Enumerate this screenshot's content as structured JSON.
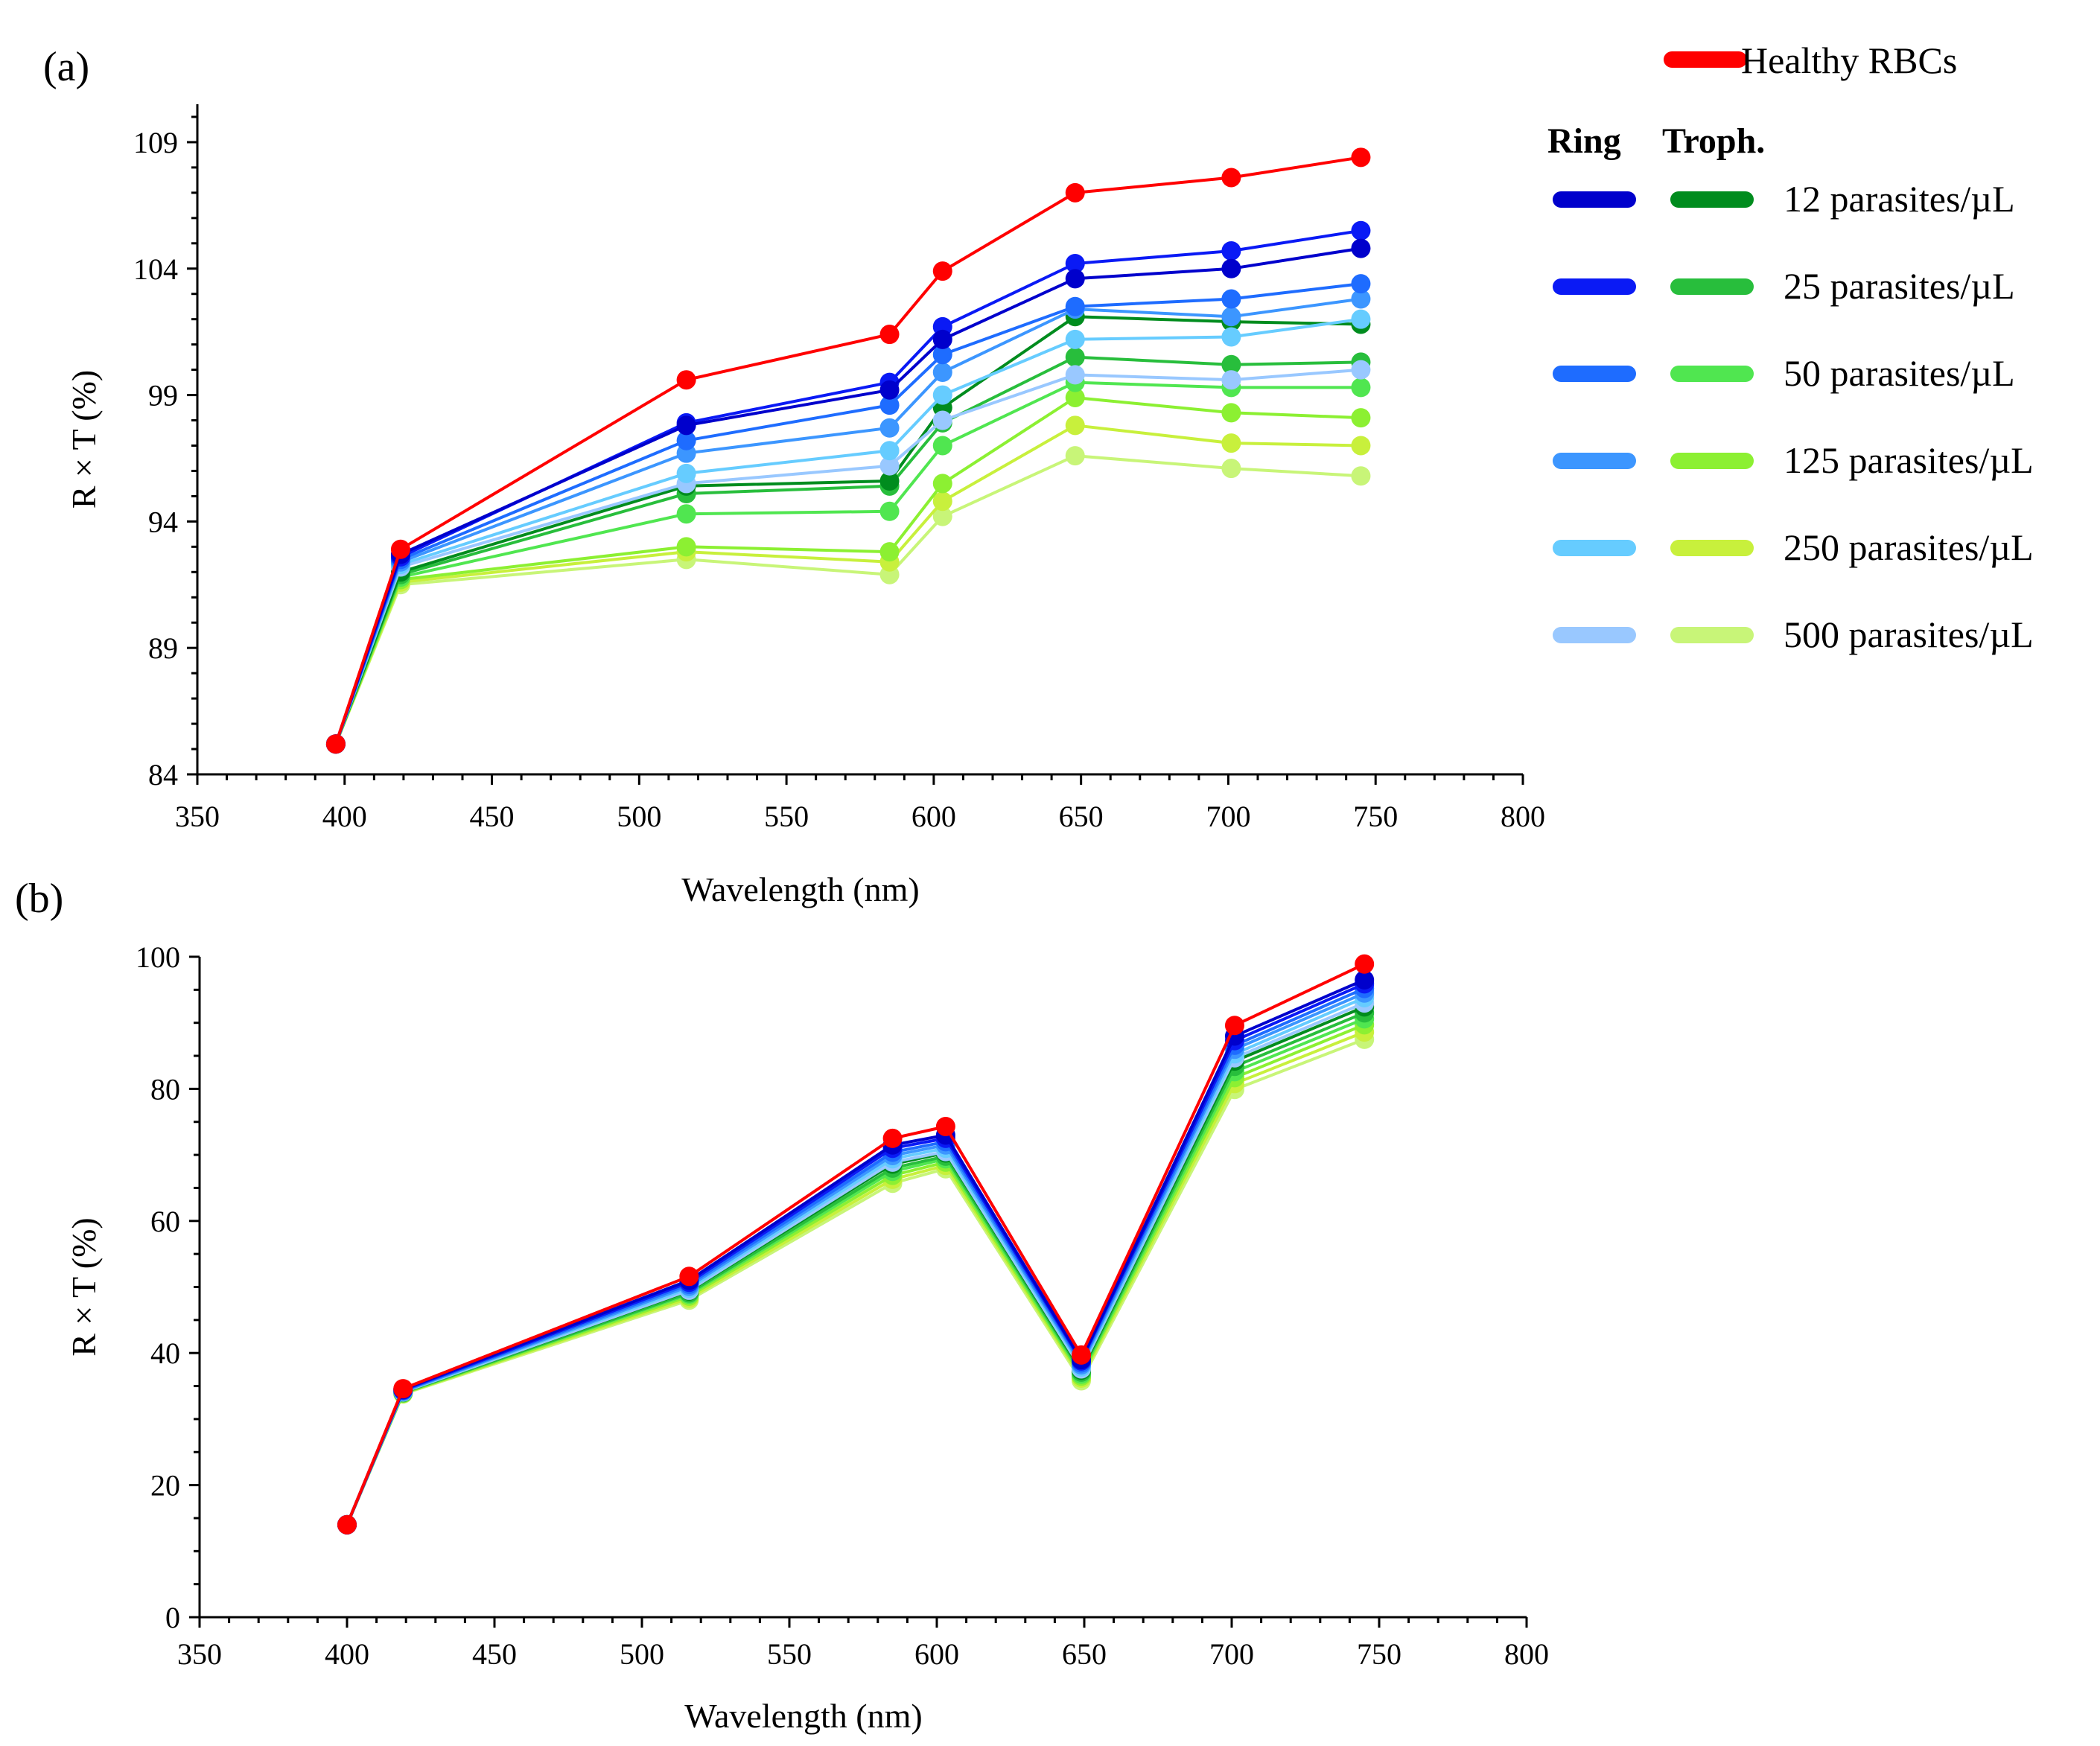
{
  "chart_data": [
    {
      "panel_label": "(a)",
      "type": "line",
      "xlabel": "Wavelength (nm)",
      "ylabel": "R × T (%)",
      "xlim": [
        350,
        800
      ],
      "ylim": [
        84,
        110.5
      ],
      "xticks": [
        350,
        400,
        450,
        500,
        550,
        600,
        650,
        700,
        750,
        800
      ],
      "yticks": [
        84,
        89,
        94,
        99,
        104,
        109
      ],
      "x": [
        397,
        419,
        516,
        585,
        603,
        648,
        701,
        745
      ],
      "series": [
        {
          "name": "Healthy RBCs",
          "color": "#ff0000",
          "values": [
            85.2,
            92.9,
            99.6,
            101.4,
            103.9,
            107.0,
            107.6,
            108.4
          ]
        },
        {
          "name": "Ring 12 parasites/µL",
          "color": "#0000cc",
          "values": [
            85.2,
            92.7,
            97.8,
            99.2,
            101.2,
            103.6,
            104.0,
            104.8
          ]
        },
        {
          "name": "Ring 25 parasites/µL",
          "color": "#0a1af5",
          "values": [
            85.2,
            92.6,
            97.9,
            99.5,
            101.7,
            104.2,
            104.7,
            105.5
          ]
        },
        {
          "name": "Ring 50 parasites/µL",
          "color": "#1e6cff",
          "values": [
            85.2,
            92.5,
            97.2,
            98.6,
            100.6,
            102.5,
            102.8,
            103.4
          ]
        },
        {
          "name": "Ring 125 parasites/µL",
          "color": "#3c96ff",
          "values": [
            85.2,
            92.4,
            96.7,
            97.7,
            99.9,
            102.4,
            102.1,
            102.8
          ]
        },
        {
          "name": "Ring 250 parasites/µL",
          "color": "#66ccff",
          "values": [
            85.2,
            92.3,
            95.9,
            96.8,
            99.0,
            101.2,
            101.3,
            102.0
          ]
        },
        {
          "name": "Ring 500 parasites/µL",
          "color": "#99c8ff",
          "values": [
            85.2,
            92.2,
            95.5,
            96.2,
            98.0,
            99.8,
            99.6,
            100.0
          ]
        },
        {
          "name": "Troph. 12 parasites/µL",
          "color": "#008c1e",
          "values": [
            85.2,
            92.0,
            95.4,
            95.6,
            98.5,
            102.1,
            101.9,
            101.8
          ]
        },
        {
          "name": "Troph. 25 parasites/µL",
          "color": "#28be3c",
          "values": [
            85.2,
            91.9,
            95.1,
            95.4,
            97.9,
            100.5,
            100.2,
            100.3
          ]
        },
        {
          "name": "Troph. 50 parasites/µL",
          "color": "#50e650",
          "values": [
            85.2,
            91.8,
            94.3,
            94.4,
            97.0,
            99.5,
            99.3,
            99.3
          ]
        },
        {
          "name": "Troph. 125 parasites/µL",
          "color": "#8cf032",
          "values": [
            85.2,
            91.7,
            93.0,
            92.8,
            95.5,
            98.9,
            98.3,
            98.1
          ]
        },
        {
          "name": "Troph. 250 parasites/µL",
          "color": "#c8f03c",
          "values": [
            85.2,
            91.6,
            92.8,
            92.4,
            94.8,
            97.8,
            97.1,
            97.0
          ]
        },
        {
          "name": "Troph. 500 parasites/µL",
          "color": "#c8f578",
          "values": [
            85.2,
            91.5,
            92.5,
            91.9,
            94.2,
            96.6,
            96.1,
            95.8
          ]
        }
      ],
      "legend": {
        "placement": "right",
        "healthy_label": "Healthy RBCs",
        "ring_header": "Ring",
        "troph_header": "Troph.",
        "rows": [
          "12 parasites/µL",
          "25 parasites/µL",
          "50 parasites/µL",
          "125 parasites/µL",
          "250 parasites/µL",
          "500 parasites/µL"
        ]
      }
    },
    {
      "panel_label": "(b)",
      "type": "line",
      "xlabel": "Wavelength (nm)",
      "ylabel": "R × T (%)",
      "xlim": [
        350,
        800
      ],
      "ylim": [
        0,
        100
      ],
      "xticks": [
        350,
        400,
        450,
        500,
        550,
        600,
        650,
        700,
        750,
        800
      ],
      "yticks": [
        0,
        20,
        40,
        60,
        80,
        100
      ],
      "x": [
        400,
        419,
        516,
        585,
        603,
        649,
        701,
        745
      ],
      "series": [
        {
          "name": "Healthy RBCs",
          "color": "#ff0000",
          "values": [
            14.0,
            34.6,
            51.6,
            72.5,
            74.3,
            39.7,
            89.6,
            98.9
          ]
        },
        {
          "name": "Ring 12 parasites/µL",
          "color": "#0000cc",
          "values": [
            14.0,
            34.5,
            51.0,
            71.5,
            73.0,
            39.0,
            88.0,
            96.5
          ]
        },
        {
          "name": "Ring 25 parasites/µL",
          "color": "#0a1af5",
          "values": [
            14.0,
            34.4,
            50.7,
            71.0,
            72.5,
            38.8,
            87.3,
            95.9
          ]
        },
        {
          "name": "Ring 50 parasites/µL",
          "color": "#1e6cff",
          "values": [
            14.0,
            34.3,
            50.4,
            70.4,
            72.0,
            38.5,
            86.6,
            95.2
          ]
        },
        {
          "name": "Ring 125 parasites/µL",
          "color": "#3c96ff",
          "values": [
            14.0,
            34.2,
            50.1,
            69.9,
            71.5,
            38.2,
            86.0,
            94.5
          ]
        },
        {
          "name": "Ring 250 parasites/µL",
          "color": "#66ccff",
          "values": [
            14.0,
            34.2,
            49.8,
            69.4,
            71.0,
            37.9,
            85.3,
            93.8
          ]
        },
        {
          "name": "Ring 500 parasites/µL",
          "color": "#99c8ff",
          "values": [
            14.0,
            34.1,
            49.5,
            68.9,
            70.5,
            37.6,
            84.7,
            93.0
          ]
        },
        {
          "name": "Troph. 12 parasites/µL",
          "color": "#008c1e",
          "values": [
            14.0,
            34.1,
            49.4,
            68.6,
            70.3,
            37.4,
            84.2,
            92.4
          ]
        },
        {
          "name": "Troph. 25 parasites/µL",
          "color": "#28be3c",
          "values": [
            14.0,
            34.0,
            49.1,
            68.0,
            69.8,
            37.1,
            83.4,
            91.5
          ]
        },
        {
          "name": "Troph. 50 parasites/µL",
          "color": "#50e650",
          "values": [
            14.0,
            34.0,
            48.9,
            67.5,
            69.4,
            36.8,
            82.6,
            90.6
          ]
        },
        {
          "name": "Troph. 125 parasites/µL",
          "color": "#8cf032",
          "values": [
            14.0,
            33.9,
            48.6,
            66.9,
            68.9,
            36.5,
            81.7,
            89.7
          ]
        },
        {
          "name": "Troph. 250 parasites/µL",
          "color": "#c8f03c",
          "values": [
            14.0,
            33.9,
            48.3,
            66.3,
            68.4,
            36.2,
            80.8,
            88.6
          ]
        },
        {
          "name": "Troph. 500 parasites/µL",
          "color": "#c8f578",
          "values": [
            14.0,
            33.8,
            48.0,
            65.7,
            67.9,
            35.8,
            79.9,
            87.5
          ]
        }
      ]
    }
  ]
}
